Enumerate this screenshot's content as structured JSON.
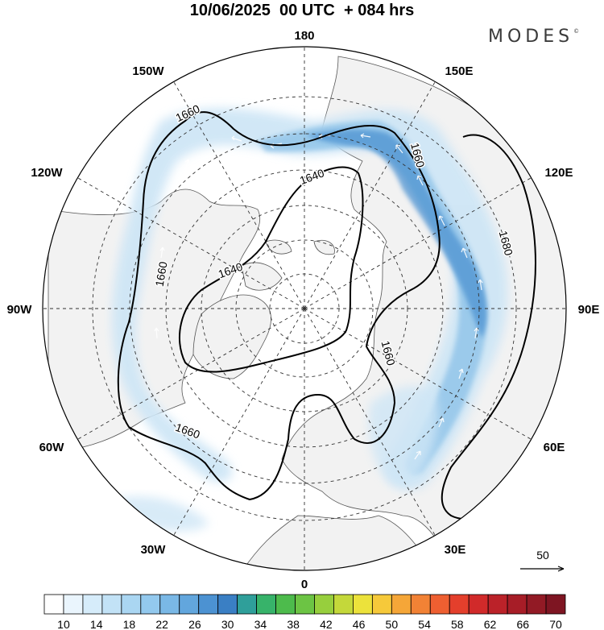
{
  "header": {
    "title": "10/06/2025  00 UTC  + 084 hrs",
    "brand": "MODES",
    "brand_mark": "©"
  },
  "map": {
    "projection": "north polar stereographic",
    "longitude_labels": {
      "lon_180": "180",
      "lon_150w": "150W",
      "lon_150e": "150E",
      "lon_120w": "120W",
      "lon_120e": "120E",
      "lon_90w": "90W",
      "lon_90e": "90E",
      "lon_60w": "60W",
      "lon_60e": "60E",
      "lon_30w": "30W",
      "lon_30e": "30E",
      "lon_0": "0"
    },
    "contour_labels": {
      "c1660_top": "1660",
      "c1640_top": "1640",
      "c1660_right": "1660",
      "c1680": "1680",
      "c1660_left": "1660",
      "c1640_left": "1640",
      "c1660_inner": "1660",
      "c1660_bottom": "1660"
    },
    "contour_levels": [
      1640,
      1660,
      1680
    ],
    "reference_vector_label": "50",
    "colors": {
      "land": "#f2f2f2",
      "ocean": "#ffffff",
      "wind_light": "#cfe6f6",
      "wind_mid": "#96c7ea",
      "wind_strong": "#4d93d1"
    }
  },
  "colorbar": {
    "ticks": [
      "10",
      "14",
      "18",
      "22",
      "26",
      "30",
      "34",
      "38",
      "42",
      "46",
      "50",
      "54",
      "58",
      "62",
      "66",
      "70"
    ],
    "colors": [
      "#ffffff",
      "#eaf5fd",
      "#d6ecfa",
      "#c2e2f6",
      "#aad6f2",
      "#93c9ee",
      "#7ab8e6",
      "#62a6dd",
      "#4c92d2",
      "#3a7fc4",
      "#2f9f9a",
      "#37b36a",
      "#4dbb4c",
      "#6cc444",
      "#97cf3d",
      "#c4d83a",
      "#ece23b",
      "#f6c93a",
      "#f5a638",
      "#f28235",
      "#ee5f31",
      "#e43f2c",
      "#d12a2a",
      "#bb2229",
      "#a71d27",
      "#921a25",
      "#7e1522"
    ]
  }
}
